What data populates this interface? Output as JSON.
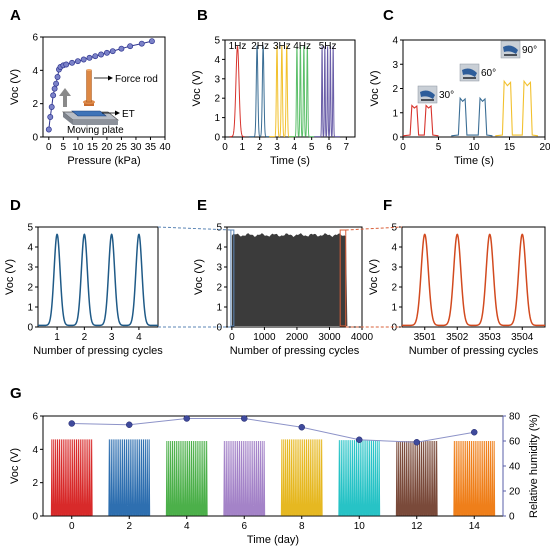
{
  "chart_data": [
    {
      "panel": "A",
      "type": "line",
      "xlabel": "Pressure (kPa)",
      "ylabel": "Voc (V)",
      "xlim": [
        -2,
        40
      ],
      "ylim": [
        0,
        6
      ],
      "xticks": [
        0,
        5,
        10,
        15,
        20,
        25,
        30,
        35,
        40
      ],
      "yticks": [
        0,
        2,
        4,
        6
      ],
      "x": [
        0,
        0.5,
        1,
        1.5,
        2,
        2.5,
        3,
        3.5,
        4,
        5,
        6,
        8,
        10,
        12,
        14,
        16,
        18,
        20,
        22,
        25,
        28,
        32,
        35.5
      ],
      "y": [
        0.45,
        1.2,
        1.8,
        2.5,
        2.9,
        3.2,
        3.6,
        4.05,
        4.2,
        4.3,
        4.35,
        4.45,
        4.55,
        4.65,
        4.75,
        4.85,
        4.95,
        5.05,
        5.15,
        5.3,
        5.45,
        5.6,
        5.75
      ],
      "annotations": [
        "Force rod",
        "ET",
        "Moving plate"
      ],
      "colors": {
        "line": "#2f3590",
        "marker": "#7b82c8"
      }
    },
    {
      "panel": "B",
      "type": "line",
      "xlabel": "Time (s)",
      "ylabel": "Voc (V)",
      "xlim": [
        0,
        7.5
      ],
      "ylim": [
        0,
        5
      ],
      "xticks": [
        0,
        1,
        2,
        3,
        4,
        5,
        6,
        7
      ],
      "yticks": [
        0,
        1,
        2,
        3,
        4,
        5
      ],
      "series": [
        {
          "name": "1Hz",
          "peaks": [
            0.72
          ],
          "amplitude": 4.65,
          "color": "#d7332c"
        },
        {
          "name": "2Hz",
          "peaks": [
            1.85,
            2.2
          ],
          "amplitude": 4.65,
          "color": "#3b6e95"
        },
        {
          "name": "3Hz",
          "peaks": [
            3.0,
            3.28,
            3.56
          ],
          "amplitude": 4.65,
          "color": "#f2c12e"
        },
        {
          "name": "4Hz",
          "peaks": [
            4.15,
            4.35,
            4.55,
            4.75
          ],
          "amplitude": 4.65,
          "color": "#5bbf6a"
        },
        {
          "name": "5Hz",
          "peaks": [
            5.6,
            5.76,
            5.92,
            6.08,
            6.24
          ],
          "amplitude": 4.65,
          "color": "#6a5ea8"
        }
      ]
    },
    {
      "panel": "C",
      "type": "line",
      "xlabel": "Time (s)",
      "ylabel": "Voc (V)",
      "xlim": [
        0,
        20
      ],
      "ylim": [
        0,
        4
      ],
      "xticks": [
        0,
        5,
        10,
        15,
        20
      ],
      "yticks": [
        0,
        1,
        2,
        3,
        4
      ],
      "series": [
        {
          "name": "30°",
          "pulses": [
            [
              1.0,
              2.2
            ],
            [
              3.0,
              4.2
            ]
          ],
          "amplitude": 1.3,
          "color": "#d7332c"
        },
        {
          "name": "60°",
          "pulses": [
            [
              7.8,
              9.0
            ],
            [
              10.6,
              11.8
            ]
          ],
          "amplitude": 1.6,
          "color": "#3b6e95"
        },
        {
          "name": "90°",
          "pulses": [
            [
              14.0,
              15.4
            ],
            [
              16.8,
              18.2
            ]
          ],
          "amplitude": 2.3,
          "color": "#f2c12e"
        }
      ]
    },
    {
      "panel": "D",
      "type": "line",
      "xlabel": "Number of pressing cycles",
      "ylabel": "Voc (V)",
      "xlim": [
        0.3,
        4.7
      ],
      "ylim": [
        0,
        5
      ],
      "xticks": [
        1,
        2,
        3,
        4
      ],
      "yticks": [
        0,
        1,
        2,
        3,
        4,
        5
      ],
      "peaks": [
        1,
        2,
        3,
        4
      ],
      "amplitude": 4.55,
      "color": "#1f5a87"
    },
    {
      "panel": "E",
      "type": "area",
      "xlabel": "Number of pressing cycles",
      "ylabel": "Voc (V)",
      "xlim": [
        -150,
        4000
      ],
      "ylim": [
        0,
        5
      ],
      "xticks": [
        0,
        1000,
        2000,
        3000,
        4000
      ],
      "yticks": [
        0,
        1,
        2,
        3,
        4,
        5
      ],
      "cycles": [
        0,
        3550
      ],
      "amplitude": 4.6,
      "color": "#3b3b3b",
      "highlights": [
        {
          "x": [
            0,
            30
          ],
          "color": "#5b85b5"
        },
        {
          "x": [
            3360,
            3470
          ],
          "color": "#d9603a"
        }
      ]
    },
    {
      "panel": "F",
      "type": "line",
      "xlabel": "Number of pressing cycles",
      "ylabel": "Voc (V)",
      "xlim": [
        3500.3,
        3504.7
      ],
      "ylim": [
        0,
        5
      ],
      "xticks": [
        3501,
        3502,
        3503,
        3504
      ],
      "yticks": [
        0,
        1,
        2,
        3,
        4,
        5
      ],
      "peaks": [
        3501,
        3502,
        3503,
        3504
      ],
      "amplitude": 4.55,
      "color": "#d24a1f"
    },
    {
      "panel": "G",
      "type": "line",
      "xlabel": "Time (day)",
      "ylabel": "Voc (V)",
      "y2label": "Relative humidity (%)",
      "xlim": [
        -1,
        15
      ],
      "ylim": [
        0,
        6
      ],
      "y2lim": [
        0,
        80
      ],
      "xticks": [
        0,
        2,
        4,
        6,
        8,
        10,
        12,
        14
      ],
      "yticks": [
        0,
        2,
        4,
        6
      ],
      "y2ticks": [
        0,
        20,
        40,
        60,
        80
      ],
      "groups": [
        {
          "day": 0,
          "amplitude": 4.6,
          "color": "#d82a2a"
        },
        {
          "day": 2,
          "amplitude": 4.6,
          "color": "#2e6fb0"
        },
        {
          "day": 4,
          "amplitude": 4.5,
          "color": "#4cb04a"
        },
        {
          "day": 6,
          "amplitude": 4.5,
          "color": "#a483c8"
        },
        {
          "day": 8,
          "amplitude": 4.6,
          "color": "#e6b821"
        },
        {
          "day": 10,
          "amplitude": 4.55,
          "color": "#27c3c6"
        },
        {
          "day": 12,
          "amplitude": 4.5,
          "color": "#7a4a3a"
        },
        {
          "day": 14,
          "amplitude": 4.5,
          "color": "#ef7f1a"
        }
      ],
      "pulses_per_group": 22,
      "group_width_days": 1.45,
      "humidity": {
        "x": [
          0,
          2,
          4,
          6,
          8,
          10,
          12,
          14
        ],
        "y": [
          74,
          73,
          78,
          78,
          71,
          61,
          59,
          67
        ],
        "color": "#3f4a9c"
      }
    }
  ]
}
